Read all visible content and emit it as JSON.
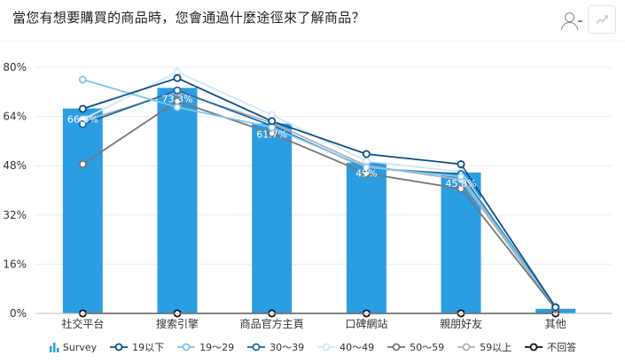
{
  "title": "當您有想要購買的商品時，您會通過什麼途徑來了解商品？",
  "chart_data": {
    "type": "bar",
    "categories": [
      "社交平台",
      "搜索引擎",
      "商品官方主頁",
      "口碑網站",
      "親朋好友",
      "其他"
    ],
    "y_ticks": [
      "0%",
      "16%",
      "32%",
      "48%",
      "64%",
      "80%"
    ],
    "ylim": [
      0,
      80
    ],
    "grid": true,
    "legend_position": "bottom",
    "bar_series": {
      "name": "Survey",
      "color": "#2b9de3",
      "values": [
        66.6,
        73.3,
        61.7,
        49,
        45.8,
        1.5
      ],
      "data_labels": [
        "66.6%",
        "73.3%",
        "61.7%",
        "49%",
        "45.8%",
        ""
      ]
    },
    "line_series": [
      {
        "name": "19以下",
        "color": "#0d4f8a",
        "values": [
          66.5,
          76.5,
          62.5,
          51.8,
          48.5,
          2
        ]
      },
      {
        "name": "19〜29",
        "color": "#7fc4ee",
        "values": [
          76,
          67,
          60.5,
          47.5,
          44.5,
          2
        ]
      },
      {
        "name": "30〜39",
        "color": "#1a6aa8",
        "values": [
          61.5,
          72.5,
          61,
          47.2,
          45.3,
          2
        ]
      },
      {
        "name": "40〜49",
        "color": "#cde8f9",
        "values": [
          63,
          78.5,
          64.5,
          49.5,
          46,
          2
        ]
      },
      {
        "name": "50〜59",
        "color": "#777777",
        "values": [
          48.5,
          69,
          58.5,
          45.5,
          40.5,
          1.5
        ]
      },
      {
        "name": "59以上",
        "color": "#b0b0b0",
        "values": [
          62.5,
          72,
          62,
          48,
          43.5,
          1.5
        ]
      },
      {
        "name": "不回答",
        "color": "#111111",
        "values": [
          0,
          0,
          0,
          0,
          0,
          0
        ]
      }
    ]
  }
}
